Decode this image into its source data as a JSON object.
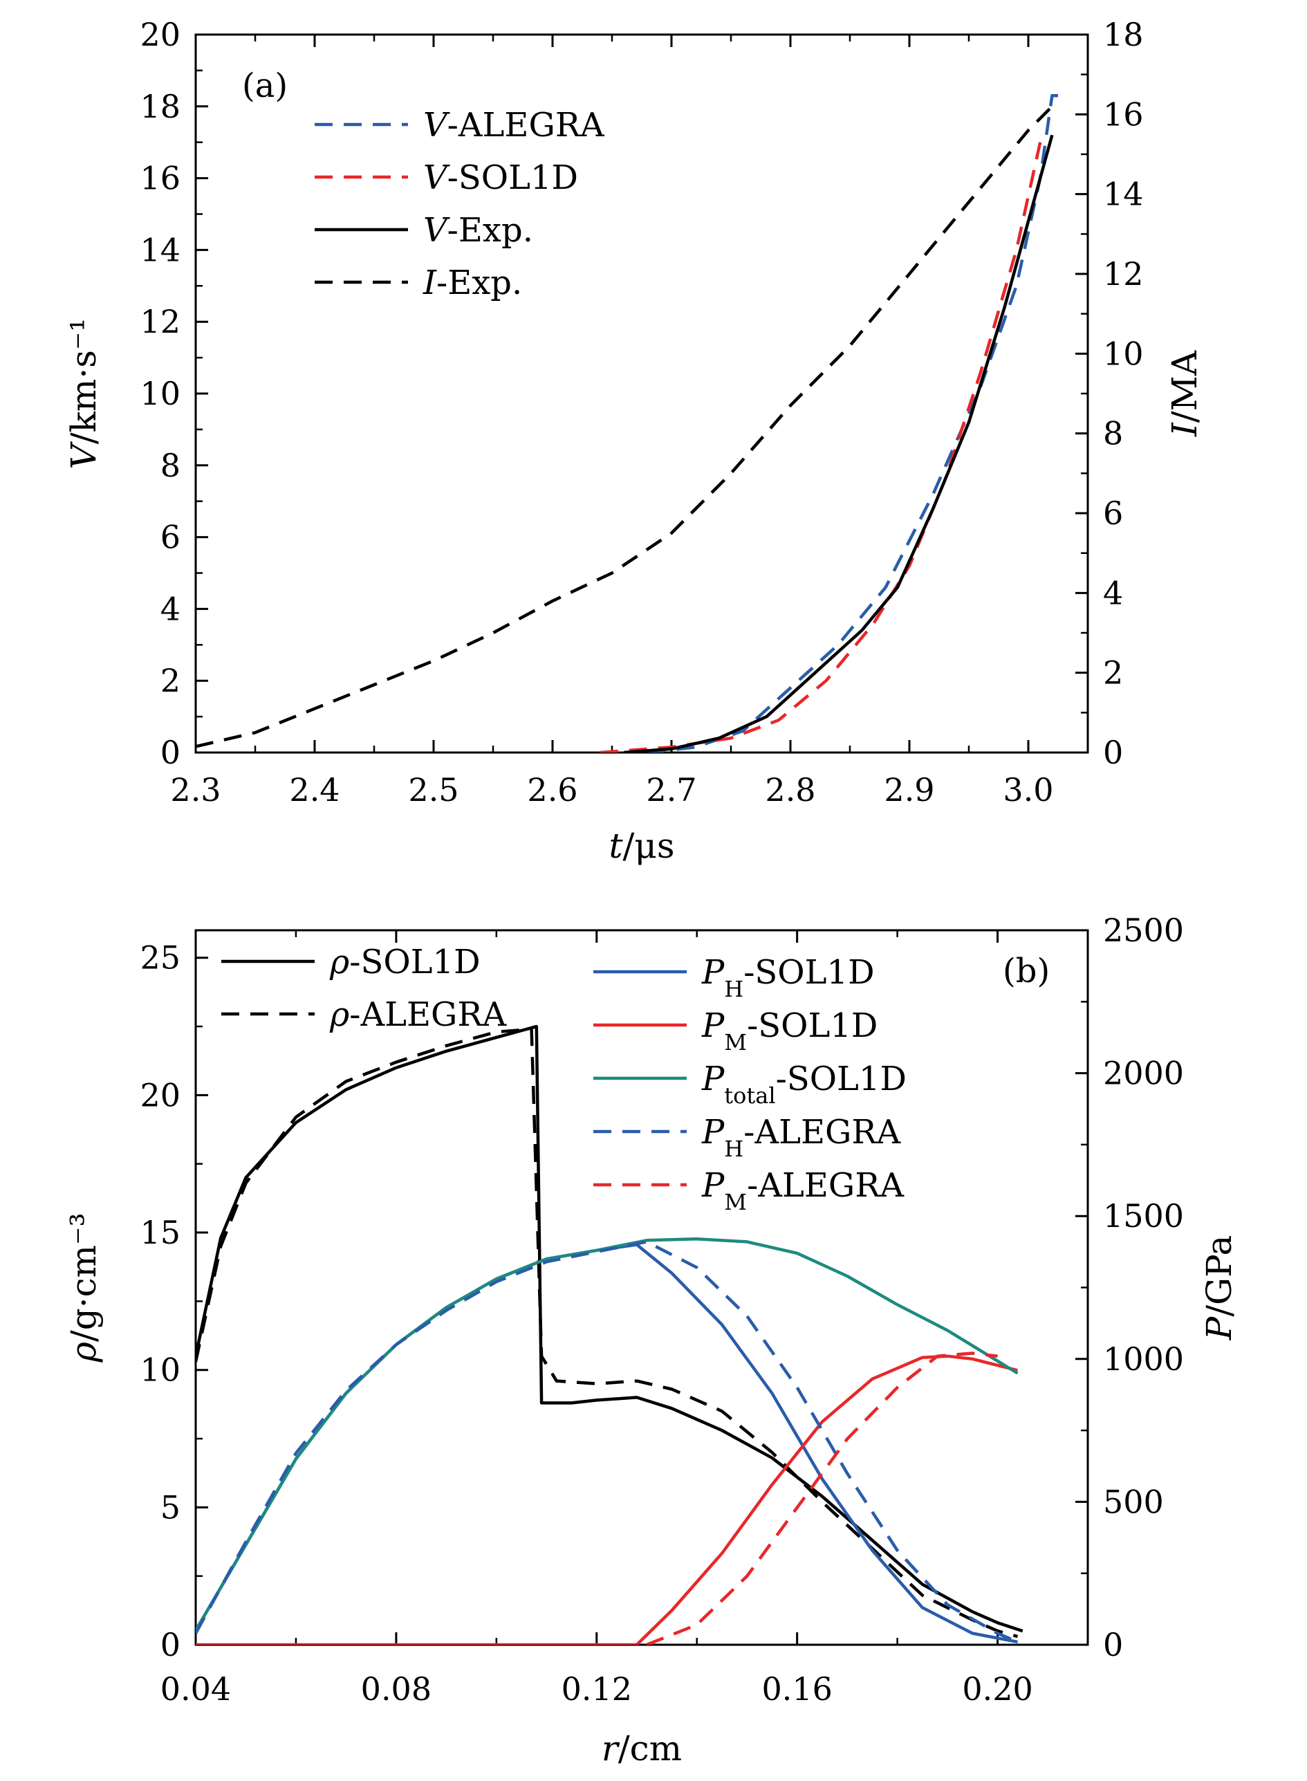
{
  "chart_data": [
    {
      "type": "line",
      "panel_label": "(a)",
      "xlabel": "t/μs",
      "ylabel": "V/km·s⁻¹",
      "y2label": "I/MA",
      "xlim": [
        2.3,
        3.05
      ],
      "ylim": [
        0,
        20
      ],
      "y2lim": [
        0,
        18
      ],
      "x_ticks": [
        "2.3",
        "2.4",
        "2.5",
        "2.6",
        "2.7",
        "2.8",
        "2.9",
        "3.0"
      ],
      "y_ticks": [
        "0",
        "2",
        "4",
        "6",
        "8",
        "10",
        "12",
        "14",
        "16",
        "18",
        "20"
      ],
      "y2_ticks": [
        "0",
        "2",
        "4",
        "6",
        "8",
        "10",
        "12",
        "14",
        "16",
        "18"
      ],
      "legend_position": "top-left",
      "series": [
        {
          "name": "V-ALEGRA",
          "color": "#2a5caa",
          "dash": "dashed",
          "axis": "left",
          "points": [
            [
              2.68,
              0.0
            ],
            [
              2.72,
              0.15
            ],
            [
              2.76,
              0.6
            ],
            [
              2.8,
              1.8
            ],
            [
              2.84,
              3.0
            ],
            [
              2.88,
              4.6
            ],
            [
              2.92,
              7.2
            ],
            [
              2.96,
              10.2
            ],
            [
              2.99,
              13.0
            ],
            [
              3.01,
              16.0
            ],
            [
              3.02,
              18.3
            ],
            [
              3.025,
              18.3
            ]
          ]
        },
        {
          "name": "V-SOL1D",
          "color": "#e8272a",
          "dash": "dashed",
          "axis": "left",
          "points": [
            [
              2.64,
              0.0
            ],
            [
              2.7,
              0.15
            ],
            [
              2.75,
              0.4
            ],
            [
              2.79,
              0.9
            ],
            [
              2.83,
              2.0
            ],
            [
              2.87,
              3.6
            ],
            [
              2.9,
              5.2
            ],
            [
              2.93,
              7.6
            ],
            [
              2.96,
              10.6
            ],
            [
              2.99,
              14.0
            ],
            [
              3.01,
              17.0
            ]
          ]
        },
        {
          "name": "V-Exp.",
          "color": "#000000",
          "dash": "solid",
          "axis": "left",
          "points": [
            [
              2.66,
              0.0
            ],
            [
              2.7,
              0.1
            ],
            [
              2.74,
              0.4
            ],
            [
              2.78,
              1.0
            ],
            [
              2.82,
              2.2
            ],
            [
              2.86,
              3.4
            ],
            [
              2.89,
              4.6
            ],
            [
              2.92,
              6.8
            ],
            [
              2.95,
              9.2
            ],
            [
              2.98,
              12.4
            ],
            [
              3.0,
              14.8
            ],
            [
              3.02,
              17.2
            ]
          ]
        },
        {
          "name": "I-Exp.",
          "color": "#000000",
          "dash": "dashed",
          "axis": "right",
          "points": [
            [
              2.3,
              0.15
            ],
            [
              2.35,
              0.5
            ],
            [
              2.4,
              1.1
            ],
            [
              2.45,
              1.7
            ],
            [
              2.5,
              2.3
            ],
            [
              2.55,
              3.0
            ],
            [
              2.6,
              3.8
            ],
            [
              2.65,
              4.5
            ],
            [
              2.7,
              5.5
            ],
            [
              2.75,
              7.0
            ],
            [
              2.8,
              8.7
            ],
            [
              2.85,
              10.2
            ],
            [
              2.9,
              12.0
            ],
            [
              2.95,
              13.8
            ],
            [
              3.0,
              15.6
            ],
            [
              3.02,
              16.2
            ]
          ]
        }
      ]
    },
    {
      "type": "line",
      "panel_label": "(b)",
      "xlabel": "r/cm",
      "ylabel": "ρ/g·cm⁻³",
      "y2label": "P/GPa",
      "xlim": [
        0.04,
        0.218
      ],
      "ylim": [
        0,
        26
      ],
      "y2lim": [
        0,
        2500
      ],
      "x_ticks": [
        "0.04",
        "0.08",
        "0.12",
        "0.16",
        "0.20"
      ],
      "y_ticks": [
        "0",
        "5",
        "10",
        "15",
        "20",
        "25"
      ],
      "y2_ticks": [
        "0",
        "500",
        "1000",
        "1500",
        "2000",
        "2500"
      ],
      "legend_position": "top",
      "series": [
        {
          "name": "ρ-SOL1D",
          "color": "#000000",
          "dash": "solid",
          "axis": "left",
          "points": [
            [
              0.04,
              10.5
            ],
            [
              0.045,
              14.8
            ],
            [
              0.05,
              17.0
            ],
            [
              0.06,
              19.0
            ],
            [
              0.07,
              20.2
            ],
            [
              0.08,
              21.0
            ],
            [
              0.09,
              21.6
            ],
            [
              0.1,
              22.1
            ],
            [
              0.108,
              22.5
            ],
            [
              0.109,
              8.8
            ],
            [
              0.115,
              8.8
            ],
            [
              0.12,
              8.9
            ],
            [
              0.128,
              9.0
            ],
            [
              0.135,
              8.6
            ],
            [
              0.145,
              7.8
            ],
            [
              0.155,
              6.8
            ],
            [
              0.165,
              5.4
            ],
            [
              0.175,
              3.8
            ],
            [
              0.185,
              2.2
            ],
            [
              0.195,
              1.2
            ],
            [
              0.2,
              0.8
            ],
            [
              0.205,
              0.5
            ]
          ]
        },
        {
          "name": "ρ-ALEGRA",
          "color": "#000000",
          "dash": "dashed",
          "axis": "left",
          "points": [
            [
              0.04,
              10.3
            ],
            [
              0.045,
              14.5
            ],
            [
              0.05,
              16.8
            ],
            [
              0.06,
              19.2
            ],
            [
              0.07,
              20.5
            ],
            [
              0.08,
              21.2
            ],
            [
              0.09,
              21.8
            ],
            [
              0.1,
              22.3
            ],
            [
              0.107,
              22.4
            ],
            [
              0.109,
              10.5
            ],
            [
              0.112,
              9.6
            ],
            [
              0.12,
              9.5
            ],
            [
              0.128,
              9.6
            ],
            [
              0.135,
              9.3
            ],
            [
              0.145,
              8.5
            ],
            [
              0.155,
              7.0
            ],
            [
              0.165,
              5.2
            ],
            [
              0.175,
              3.5
            ],
            [
              0.185,
              1.8
            ],
            [
              0.195,
              0.9
            ],
            [
              0.2,
              0.5
            ],
            [
              0.204,
              0.3
            ]
          ]
        },
        {
          "name": "P_H-SOL1D",
          "color": "#2a5caa",
          "dash": "solid",
          "axis": "right",
          "points": [
            [
              0.04,
              50
            ],
            [
              0.05,
              350
            ],
            [
              0.06,
              650
            ],
            [
              0.07,
              880
            ],
            [
              0.08,
              1050
            ],
            [
              0.09,
              1180
            ],
            [
              0.1,
              1280
            ],
            [
              0.11,
              1350
            ],
            [
              0.12,
              1380
            ],
            [
              0.128,
              1400
            ],
            [
              0.135,
              1300
            ],
            [
              0.145,
              1120
            ],
            [
              0.155,
              880
            ],
            [
              0.165,
              580
            ],
            [
              0.175,
              330
            ],
            [
              0.185,
              130
            ],
            [
              0.195,
              40
            ],
            [
              0.204,
              10
            ]
          ]
        },
        {
          "name": "P_M-SOL1D",
          "color": "#e8272a",
          "dash": "solid",
          "axis": "right",
          "points": [
            [
              0.04,
              0
            ],
            [
              0.128,
              0
            ],
            [
              0.135,
              120
            ],
            [
              0.145,
              320
            ],
            [
              0.155,
              560
            ],
            [
              0.165,
              780
            ],
            [
              0.175,
              930
            ],
            [
              0.185,
              1005
            ],
            [
              0.19,
              1010
            ],
            [
              0.195,
              1000
            ],
            [
              0.204,
              960
            ]
          ]
        },
        {
          "name": "P_total-SOL1D",
          "color": "#1e8a7f",
          "dash": "solid",
          "axis": "right",
          "points": [
            [
              0.04,
              50
            ],
            [
              0.05,
              350
            ],
            [
              0.06,
              650
            ],
            [
              0.07,
              880
            ],
            [
              0.08,
              1050
            ],
            [
              0.09,
              1180
            ],
            [
              0.1,
              1280
            ],
            [
              0.11,
              1350
            ],
            [
              0.12,
              1380
            ],
            [
              0.13,
              1415
            ],
            [
              0.14,
              1420
            ],
            [
              0.15,
              1410
            ],
            [
              0.16,
              1370
            ],
            [
              0.17,
              1290
            ],
            [
              0.18,
              1190
            ],
            [
              0.19,
              1100
            ],
            [
              0.204,
              950
            ]
          ]
        },
        {
          "name": "P_H-ALEGRA",
          "color": "#2a5caa",
          "dash": "dashed",
          "axis": "right",
          "points": [
            [
              0.04,
              40
            ],
            [
              0.05,
              360
            ],
            [
              0.06,
              670
            ],
            [
              0.07,
              890
            ],
            [
              0.08,
              1050
            ],
            [
              0.09,
              1170
            ],
            [
              0.1,
              1270
            ],
            [
              0.11,
              1340
            ],
            [
              0.12,
              1375
            ],
            [
              0.13,
              1410
            ],
            [
              0.14,
              1320
            ],
            [
              0.15,
              1150
            ],
            [
              0.16,
              900
            ],
            [
              0.17,
              600
            ],
            [
              0.18,
              330
            ],
            [
              0.19,
              140
            ],
            [
              0.2,
              40
            ],
            [
              0.204,
              10
            ]
          ]
        },
        {
          "name": "P_M-ALEGRA",
          "color": "#e8272a",
          "dash": "dashed",
          "axis": "right",
          "points": [
            [
              0.13,
              0
            ],
            [
              0.14,
              70
            ],
            [
              0.15,
              240
            ],
            [
              0.16,
              480
            ],
            [
              0.17,
              720
            ],
            [
              0.18,
              900
            ],
            [
              0.188,
              1010
            ],
            [
              0.195,
              1020
            ],
            [
              0.2,
              1010
            ]
          ]
        }
      ]
    }
  ]
}
